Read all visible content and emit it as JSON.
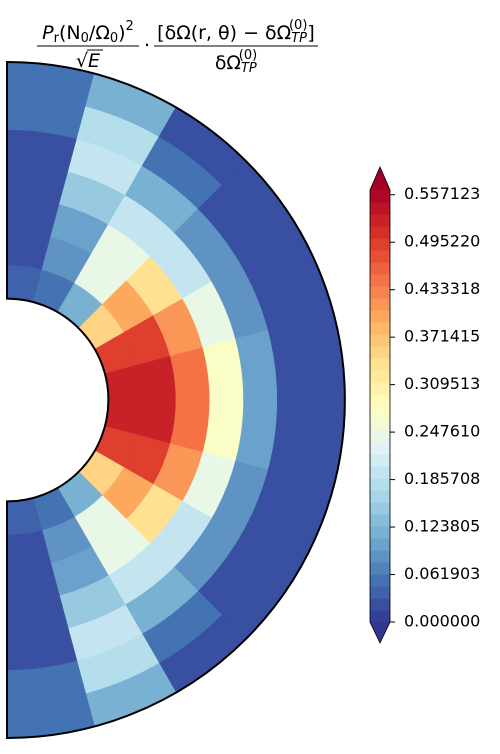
{
  "chart_data": {
    "type": "polar-contour",
    "title": {
      "numerator_left": [
        "P",
        "r",
        "(N",
        "0",
        "/Ω",
        "0",
        ")",
        "2"
      ],
      "denominator_left": [
        "√",
        "E"
      ],
      "operator": "·",
      "numerator_right": [
        "[δΩ(r, θ) − δΩ",
        "TP",
        "(0)",
        "]"
      ],
      "denominator_right": [
        "δΩ",
        "TP",
        "(0)"
      ]
    },
    "field": {
      "r": [
        0.3,
        0.4,
        0.5,
        0.6,
        0.7,
        0.8,
        0.9,
        1.0
      ],
      "theta": [
        0,
        15,
        30,
        45,
        60,
        75,
        90,
        105,
        120,
        135,
        150,
        165,
        180
      ],
      "values": [
        [
          0.04,
          0.06,
          0.12,
          0.35,
          0.5,
          0.53,
          0.53,
          0.5,
          0.35,
          0.12,
          0.06,
          0.04
        ],
        [
          0.03,
          0.08,
          0.25,
          0.4,
          0.5,
          0.52,
          0.52,
          0.5,
          0.4,
          0.25,
          0.08,
          0.03
        ],
        [
          0.03,
          0.1,
          0.25,
          0.33,
          0.42,
          0.45,
          0.45,
          0.42,
          0.33,
          0.25,
          0.1,
          0.03
        ],
        [
          0.03,
          0.15,
          0.2,
          0.2,
          0.25,
          0.28,
          0.28,
          0.25,
          0.2,
          0.2,
          0.15,
          0.03
        ],
        [
          0.03,
          0.2,
          0.12,
          0.08,
          0.08,
          0.1,
          0.1,
          0.08,
          0.08,
          0.12,
          0.2,
          0.03
        ],
        [
          0.05,
          0.18,
          0.06,
          0.03,
          0.03,
          0.03,
          0.03,
          0.03,
          0.03,
          0.06,
          0.18,
          0.05
        ],
        [
          0.06,
          0.12,
          0.03,
          0.02,
          0.02,
          0.02,
          0.02,
          0.02,
          0.02,
          0.03,
          0.12,
          0.06
        ]
      ]
    },
    "colormap": [
      "#313695",
      "#4575b4",
      "#74add1",
      "#abd9e9",
      "#e0f3f8",
      "#ffffbf",
      "#fee090",
      "#fdae61",
      "#f46d43",
      "#d73027",
      "#a50026"
    ],
    "clim": [
      0,
      0.5633
    ],
    "cticks": [
      {
        "value": 0,
        "label": "0.000000"
      },
      0.061903,
      0.123805,
      0.185708,
      {
        "value": 0.24761,
        "label": "0.247610"
      },
      0.309513,
      0.371415,
      0.433318,
      {
        "value": 0.49522,
        "label": "0.495220"
      },
      0.557123
    ]
  }
}
